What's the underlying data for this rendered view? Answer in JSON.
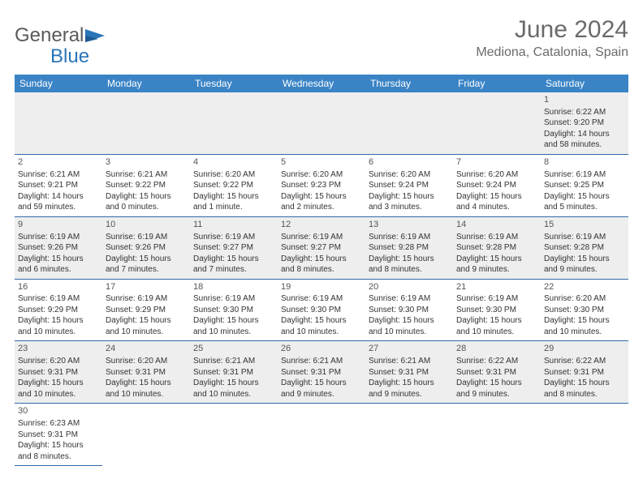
{
  "logo": {
    "general": "General",
    "blue": "Blue"
  },
  "title": "June 2024",
  "location": "Mediona, Catalonia, Spain",
  "colors": {
    "header_bg": "#3a84c6",
    "header_text": "#ffffff",
    "row_border": "#2f6aa6",
    "row_alt_bg": "#eeeeee",
    "text": "#333333",
    "title_text": "#6a6a6a",
    "logo_blue": "#2a74b8"
  },
  "days_of_week": [
    "Sunday",
    "Monday",
    "Tuesday",
    "Wednesday",
    "Thursday",
    "Friday",
    "Saturday"
  ],
  "weeks": [
    [
      null,
      null,
      null,
      null,
      null,
      null,
      {
        "n": "1",
        "sr": "Sunrise: 6:22 AM",
        "ss": "Sunset: 9:20 PM",
        "dl": "Daylight: 14 hours and 58 minutes."
      }
    ],
    [
      {
        "n": "2",
        "sr": "Sunrise: 6:21 AM",
        "ss": "Sunset: 9:21 PM",
        "dl": "Daylight: 14 hours and 59 minutes."
      },
      {
        "n": "3",
        "sr": "Sunrise: 6:21 AM",
        "ss": "Sunset: 9:22 PM",
        "dl": "Daylight: 15 hours and 0 minutes."
      },
      {
        "n": "4",
        "sr": "Sunrise: 6:20 AM",
        "ss": "Sunset: 9:22 PM",
        "dl": "Daylight: 15 hours and 1 minute."
      },
      {
        "n": "5",
        "sr": "Sunrise: 6:20 AM",
        "ss": "Sunset: 9:23 PM",
        "dl": "Daylight: 15 hours and 2 minutes."
      },
      {
        "n": "6",
        "sr": "Sunrise: 6:20 AM",
        "ss": "Sunset: 9:24 PM",
        "dl": "Daylight: 15 hours and 3 minutes."
      },
      {
        "n": "7",
        "sr": "Sunrise: 6:20 AM",
        "ss": "Sunset: 9:24 PM",
        "dl": "Daylight: 15 hours and 4 minutes."
      },
      {
        "n": "8",
        "sr": "Sunrise: 6:19 AM",
        "ss": "Sunset: 9:25 PM",
        "dl": "Daylight: 15 hours and 5 minutes."
      }
    ],
    [
      {
        "n": "9",
        "sr": "Sunrise: 6:19 AM",
        "ss": "Sunset: 9:26 PM",
        "dl": "Daylight: 15 hours and 6 minutes."
      },
      {
        "n": "10",
        "sr": "Sunrise: 6:19 AM",
        "ss": "Sunset: 9:26 PM",
        "dl": "Daylight: 15 hours and 7 minutes."
      },
      {
        "n": "11",
        "sr": "Sunrise: 6:19 AM",
        "ss": "Sunset: 9:27 PM",
        "dl": "Daylight: 15 hours and 7 minutes."
      },
      {
        "n": "12",
        "sr": "Sunrise: 6:19 AM",
        "ss": "Sunset: 9:27 PM",
        "dl": "Daylight: 15 hours and 8 minutes."
      },
      {
        "n": "13",
        "sr": "Sunrise: 6:19 AM",
        "ss": "Sunset: 9:28 PM",
        "dl": "Daylight: 15 hours and 8 minutes."
      },
      {
        "n": "14",
        "sr": "Sunrise: 6:19 AM",
        "ss": "Sunset: 9:28 PM",
        "dl": "Daylight: 15 hours and 9 minutes."
      },
      {
        "n": "15",
        "sr": "Sunrise: 6:19 AM",
        "ss": "Sunset: 9:28 PM",
        "dl": "Daylight: 15 hours and 9 minutes."
      }
    ],
    [
      {
        "n": "16",
        "sr": "Sunrise: 6:19 AM",
        "ss": "Sunset: 9:29 PM",
        "dl": "Daylight: 15 hours and 10 minutes."
      },
      {
        "n": "17",
        "sr": "Sunrise: 6:19 AM",
        "ss": "Sunset: 9:29 PM",
        "dl": "Daylight: 15 hours and 10 minutes."
      },
      {
        "n": "18",
        "sr": "Sunrise: 6:19 AM",
        "ss": "Sunset: 9:30 PM",
        "dl": "Daylight: 15 hours and 10 minutes."
      },
      {
        "n": "19",
        "sr": "Sunrise: 6:19 AM",
        "ss": "Sunset: 9:30 PM",
        "dl": "Daylight: 15 hours and 10 minutes."
      },
      {
        "n": "20",
        "sr": "Sunrise: 6:19 AM",
        "ss": "Sunset: 9:30 PM",
        "dl": "Daylight: 15 hours and 10 minutes."
      },
      {
        "n": "21",
        "sr": "Sunrise: 6:19 AM",
        "ss": "Sunset: 9:30 PM",
        "dl": "Daylight: 15 hours and 10 minutes."
      },
      {
        "n": "22",
        "sr": "Sunrise: 6:20 AM",
        "ss": "Sunset: 9:30 PM",
        "dl": "Daylight: 15 hours and 10 minutes."
      }
    ],
    [
      {
        "n": "23",
        "sr": "Sunrise: 6:20 AM",
        "ss": "Sunset: 9:31 PM",
        "dl": "Daylight: 15 hours and 10 minutes."
      },
      {
        "n": "24",
        "sr": "Sunrise: 6:20 AM",
        "ss": "Sunset: 9:31 PM",
        "dl": "Daylight: 15 hours and 10 minutes."
      },
      {
        "n": "25",
        "sr": "Sunrise: 6:21 AM",
        "ss": "Sunset: 9:31 PM",
        "dl": "Daylight: 15 hours and 10 minutes."
      },
      {
        "n": "26",
        "sr": "Sunrise: 6:21 AM",
        "ss": "Sunset: 9:31 PM",
        "dl": "Daylight: 15 hours and 9 minutes."
      },
      {
        "n": "27",
        "sr": "Sunrise: 6:21 AM",
        "ss": "Sunset: 9:31 PM",
        "dl": "Daylight: 15 hours and 9 minutes."
      },
      {
        "n": "28",
        "sr": "Sunrise: 6:22 AM",
        "ss": "Sunset: 9:31 PM",
        "dl": "Daylight: 15 hours and 9 minutes."
      },
      {
        "n": "29",
        "sr": "Sunrise: 6:22 AM",
        "ss": "Sunset: 9:31 PM",
        "dl": "Daylight: 15 hours and 8 minutes."
      }
    ],
    [
      {
        "n": "30",
        "sr": "Sunrise: 6:23 AM",
        "ss": "Sunset: 9:31 PM",
        "dl": "Daylight: 15 hours and 8 minutes."
      },
      null,
      null,
      null,
      null,
      null,
      null
    ]
  ]
}
